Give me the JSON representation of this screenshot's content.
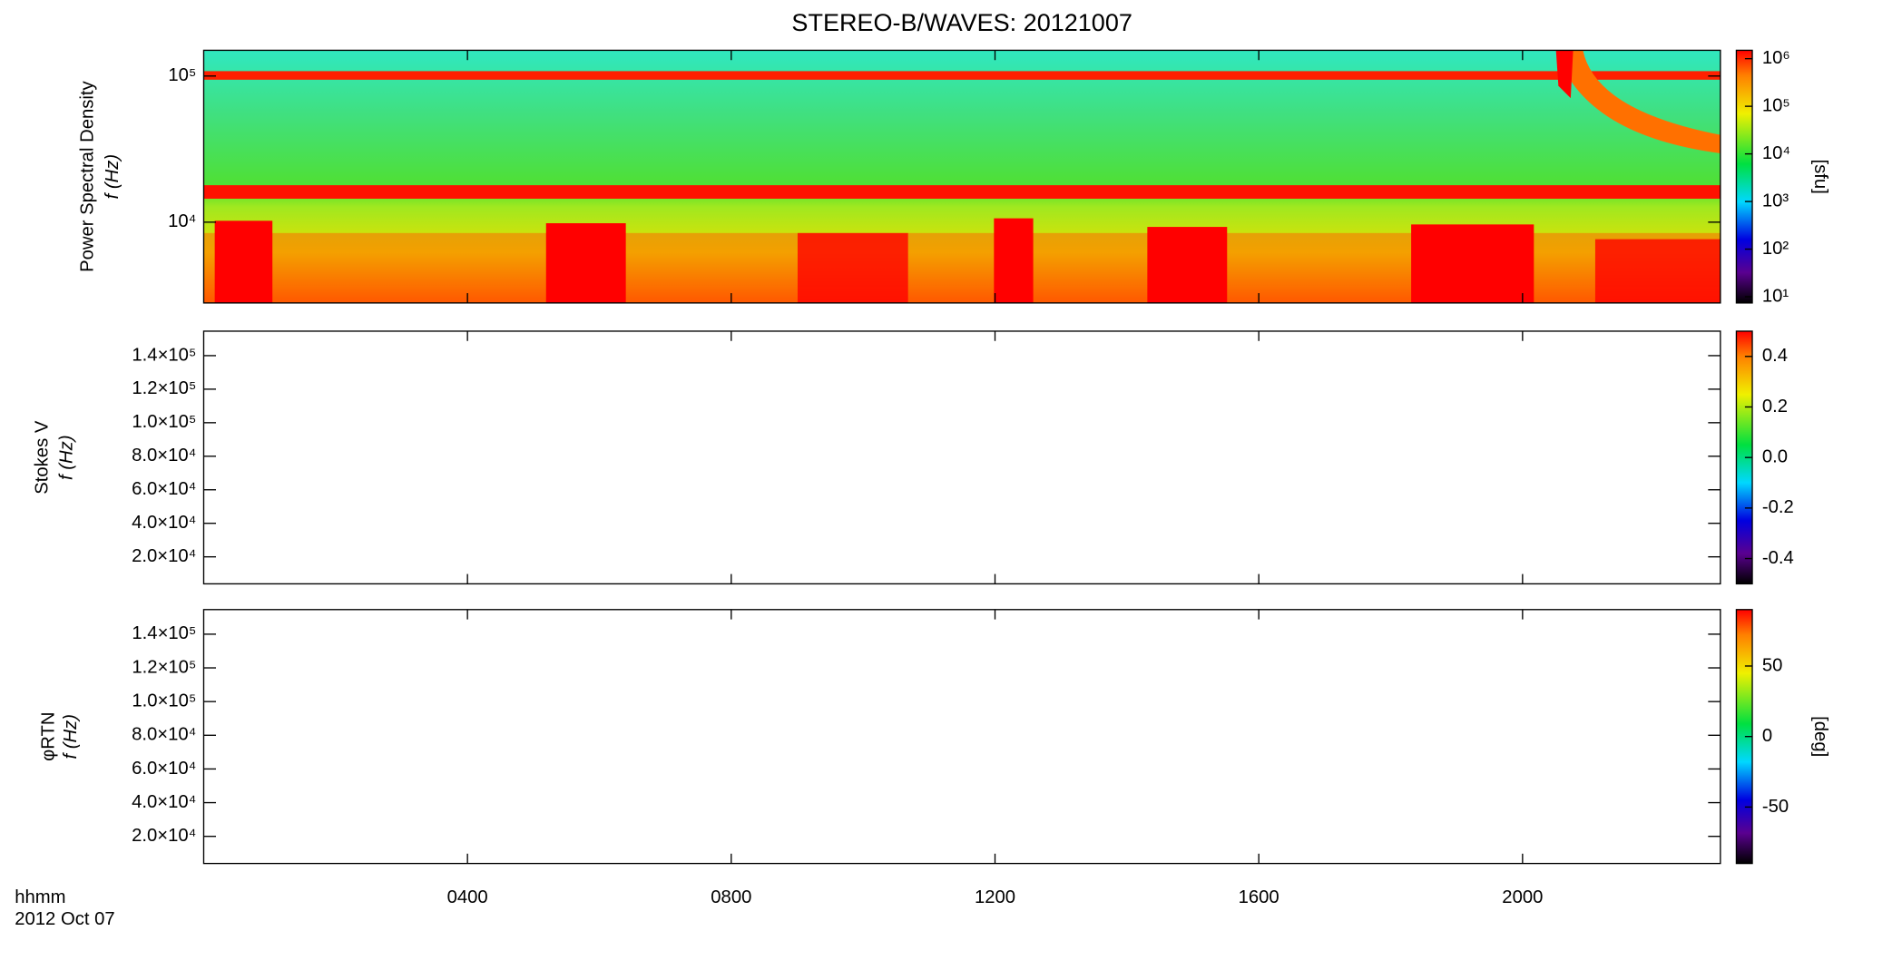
{
  "chart_data": [
    {
      "type": "spectrogram",
      "title": "STEREO-B/WAVES: 20121007",
      "ylabel": [
        "Power Spectral Density",
        "f (Hz)"
      ],
      "xlim": [
        0,
        23
      ],
      "log_y": true,
      "ylim": [
        2800,
        150000
      ],
      "yticks": [
        {
          "value": 10000,
          "label": "10⁴"
        },
        {
          "value": 100000,
          "label": "10⁵"
        }
      ],
      "colorbar": {
        "label": "[sfu]",
        "log": true,
        "lim": [
          7.4,
          1500000
        ],
        "ticks": [
          {
            "value": 10,
            "label": "10¹"
          },
          {
            "value": 100,
            "label": "10²"
          },
          {
            "value": 1000,
            "label": "10³"
          },
          {
            "value": 10000,
            "label": "10⁴"
          },
          {
            "value": 100000,
            "label": "10⁵"
          },
          {
            "value": 1000000,
            "label": "10⁶"
          }
        ]
      }
    },
    {
      "type": "spectrogram",
      "ylabel": [
        "Stokes V",
        "f (Hz)"
      ],
      "xlim": [
        0,
        23
      ],
      "log_y": false,
      "ylim": [
        3900,
        154600
      ],
      "yticks": [
        {
          "value": 20000,
          "label": "2.0×10⁴"
        },
        {
          "value": 40000,
          "label": "4.0×10⁴"
        },
        {
          "value": 60000,
          "label": "6.0×10⁴"
        },
        {
          "value": 80000,
          "label": "8.0×10⁴"
        },
        {
          "value": 100000,
          "label": "1.0×10⁵"
        },
        {
          "value": 120000,
          "label": "1.2×10⁵"
        },
        {
          "value": 140000,
          "label": "1.4×10⁵"
        }
      ],
      "colorbar": {
        "log": false,
        "lim": [
          -0.5,
          0.5
        ],
        "ticks": [
          -0.4,
          -0.2,
          {
            "value": 0,
            "label": "0.0"
          },
          0.2,
          0.4
        ]
      }
    },
    {
      "type": "spectrogram",
      "ylabel": [
        "φRTN",
        "f (Hz)"
      ],
      "xlim": [
        0,
        23
      ],
      "log_y": false,
      "ylim": [
        3900,
        154600
      ],
      "yticks": [
        {
          "value": 20000,
          "label": "2.0×10⁴"
        },
        {
          "value": 40000,
          "label": "4.0×10⁴"
        },
        {
          "value": 60000,
          "label": "6.0×10⁴"
        },
        {
          "value": 80000,
          "label": "8.0×10⁴"
        },
        {
          "value": 100000,
          "label": "1.0×10⁵"
        },
        {
          "value": 120000,
          "label": "1.2×10⁵"
        },
        {
          "value": 140000,
          "label": "1.4×10⁵"
        }
      ],
      "colorbar": {
        "label": "[deg]",
        "log": false,
        "lim": [
          -90,
          90
        ],
        "ticks": [
          -50,
          0,
          50
        ]
      },
      "xlabel": "hhmm",
      "date": "2012 Oct 07",
      "xticks": [
        {
          "value": 4,
          "label": "0400"
        },
        {
          "value": 8,
          "label": "0800"
        },
        {
          "value": 12,
          "label": "1200"
        },
        {
          "value": 16,
          "label": "1600"
        },
        {
          "value": 20,
          "label": "2000"
        }
      ]
    }
  ]
}
